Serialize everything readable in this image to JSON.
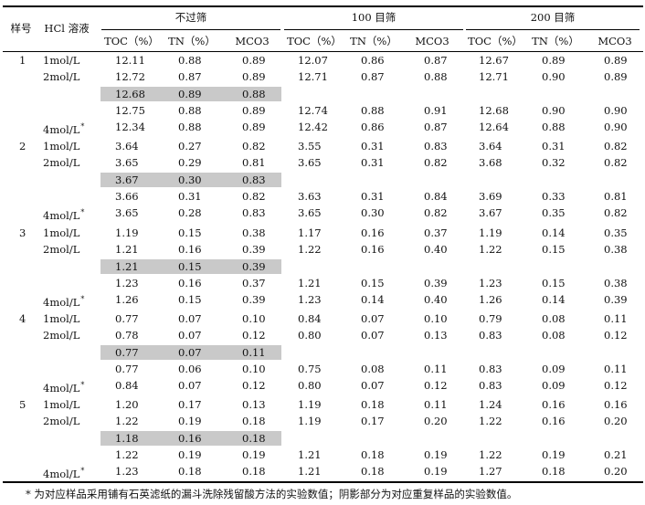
{
  "headers": {
    "sample": "样号",
    "hcl": "HCl 溶液",
    "groups": [
      "不过筛",
      "100 目筛",
      "200 目筛"
    ],
    "cols": [
      "TOC（%）",
      "TN（%）",
      "MCO3"
    ]
  },
  "samples": [
    {
      "id": "1",
      "rows": [
        {
          "label": "1mol/L",
          "star": false,
          "shaded": false,
          "vals": [
            [
              "12.11",
              "0.88",
              "0.89"
            ],
            [
              "12.07",
              "0.86",
              "0.87"
            ],
            [
              "12.67",
              "0.89",
              "0.89"
            ]
          ]
        },
        {
          "label": "2mol/L",
          "star": false,
          "shaded": false,
          "vals": [
            [
              "12.72",
              "0.87",
              "0.89"
            ],
            [
              "12.71",
              "0.87",
              "0.88"
            ],
            [
              "12.71",
              "0.90",
              "0.89"
            ]
          ]
        },
        {
          "label": "",
          "star": false,
          "shaded": true,
          "vals": [
            [
              "12.68",
              "0.89",
              "0.88"
            ],
            [
              "",
              "",
              ""
            ],
            [
              "",
              "",
              ""
            ]
          ]
        },
        {
          "label": "",
          "star": false,
          "shaded": false,
          "vals": [
            [
              "12.75",
              "0.88",
              "0.89"
            ],
            [
              "12.74",
              "0.88",
              "0.91"
            ],
            [
              "12.68",
              "0.90",
              "0.90"
            ]
          ]
        },
        {
          "label": "4mol/L",
          "star": true,
          "shaded": false,
          "vals": [
            [
              "12.34",
              "0.88",
              "0.89"
            ],
            [
              "12.42",
              "0.86",
              "0.87"
            ],
            [
              "12.64",
              "0.88",
              "0.90"
            ]
          ]
        }
      ]
    },
    {
      "id": "2",
      "rows": [
        {
          "label": "1mol/L",
          "star": false,
          "shaded": false,
          "vals": [
            [
              "3.64",
              "0.27",
              "0.82"
            ],
            [
              "3.55",
              "0.31",
              "0.83"
            ],
            [
              "3.64",
              "0.31",
              "0.82"
            ]
          ]
        },
        {
          "label": "2mol/L",
          "star": false,
          "shaded": false,
          "vals": [
            [
              "3.65",
              "0.29",
              "0.81"
            ],
            [
              "3.65",
              "0.31",
              "0.82"
            ],
            [
              "3.68",
              "0.32",
              "0.82"
            ]
          ]
        },
        {
          "label": "",
          "star": false,
          "shaded": true,
          "vals": [
            [
              "3.67",
              "0.30",
              "0.83"
            ],
            [
              "",
              "",
              ""
            ],
            [
              "",
              "",
              ""
            ]
          ]
        },
        {
          "label": "",
          "star": false,
          "shaded": false,
          "vals": [
            [
              "3.66",
              "0.31",
              "0.82"
            ],
            [
              "3.63",
              "0.31",
              "0.84"
            ],
            [
              "3.69",
              "0.33",
              "0.81"
            ]
          ]
        },
        {
          "label": "4mol/L",
          "star": true,
          "shaded": false,
          "vals": [
            [
              "3.65",
              "0.28",
              "0.83"
            ],
            [
              "3.65",
              "0.30",
              "0.82"
            ],
            [
              "3.67",
              "0.35",
              "0.82"
            ]
          ]
        }
      ]
    },
    {
      "id": "3",
      "rows": [
        {
          "label": "1mol/L",
          "star": false,
          "shaded": false,
          "vals": [
            [
              "1.19",
              "0.15",
              "0.38"
            ],
            [
              "1.17",
              "0.16",
              "0.37"
            ],
            [
              "1.19",
              "0.14",
              "0.35"
            ]
          ]
        },
        {
          "label": "2mol/L",
          "star": false,
          "shaded": false,
          "vals": [
            [
              "1.21",
              "0.16",
              "0.39"
            ],
            [
              "1.22",
              "0.16",
              "0.40"
            ],
            [
              "1.22",
              "0.15",
              "0.38"
            ]
          ]
        },
        {
          "label": "",
          "star": false,
          "shaded": true,
          "vals": [
            [
              "1.21",
              "0.15",
              "0.39"
            ],
            [
              "",
              "",
              ""
            ],
            [
              "",
              "",
              ""
            ]
          ]
        },
        {
          "label": "",
          "star": false,
          "shaded": false,
          "vals": [
            [
              "1.23",
              "0.16",
              "0.37"
            ],
            [
              "1.21",
              "0.15",
              "0.39"
            ],
            [
              "1.23",
              "0.15",
              "0.38"
            ]
          ]
        },
        {
          "label": "4mol/L",
          "star": true,
          "shaded": false,
          "vals": [
            [
              "1.26",
              "0.15",
              "0.39"
            ],
            [
              "1.23",
              "0.14",
              "0.40"
            ],
            [
              "1.26",
              "0.14",
              "0.39"
            ]
          ]
        }
      ]
    },
    {
      "id": "4",
      "rows": [
        {
          "label": "1mol/L",
          "star": false,
          "shaded": false,
          "vals": [
            [
              "0.77",
              "0.07",
              "0.10"
            ],
            [
              "0.84",
              "0.07",
              "0.10"
            ],
            [
              "0.79",
              "0.08",
              "0.11"
            ]
          ]
        },
        {
          "label": "2mol/L",
          "star": false,
          "shaded": false,
          "vals": [
            [
              "0.78",
              "0.07",
              "0.12"
            ],
            [
              "0.80",
              "0.07",
              "0.13"
            ],
            [
              "0.83",
              "0.08",
              "0.12"
            ]
          ]
        },
        {
          "label": "",
          "star": false,
          "shaded": true,
          "vals": [
            [
              "0.77",
              "0.07",
              "0.11"
            ],
            [
              "",
              "",
              ""
            ],
            [
              "",
              "",
              ""
            ]
          ]
        },
        {
          "label": "",
          "star": false,
          "shaded": false,
          "vals": [
            [
              "0.77",
              "0.06",
              "0.10"
            ],
            [
              "0.75",
              "0.08",
              "0.11"
            ],
            [
              "0.83",
              "0.09",
              "0.11"
            ]
          ]
        },
        {
          "label": "4mol/L",
          "star": true,
          "shaded": false,
          "vals": [
            [
              "0.84",
              "0.07",
              "0.12"
            ],
            [
              "0.80",
              "0.07",
              "0.12"
            ],
            [
              "0.83",
              "0.09",
              "0.12"
            ]
          ]
        }
      ]
    },
    {
      "id": "5",
      "rows": [
        {
          "label": "1mol/L",
          "star": false,
          "shaded": false,
          "vals": [
            [
              "1.20",
              "0.17",
              "0.13"
            ],
            [
              "1.19",
              "0.18",
              "0.11"
            ],
            [
              "1.24",
              "0.16",
              "0.16"
            ]
          ]
        },
        {
          "label": "2mol/L",
          "star": false,
          "shaded": false,
          "vals": [
            [
              "1.22",
              "0.19",
              "0.18"
            ],
            [
              "1.19",
              "0.17",
              "0.20"
            ],
            [
              "1.22",
              "0.16",
              "0.20"
            ]
          ]
        },
        {
          "label": "",
          "star": false,
          "shaded": true,
          "vals": [
            [
              "1.18",
              "0.16",
              "0.18"
            ],
            [
              "",
              "",
              ""
            ],
            [
              "",
              "",
              ""
            ]
          ]
        },
        {
          "label": "",
          "star": false,
          "shaded": false,
          "vals": [
            [
              "1.22",
              "0.19",
              "0.19"
            ],
            [
              "1.21",
              "0.18",
              "0.19"
            ],
            [
              "1.22",
              "0.19",
              "0.21"
            ]
          ]
        },
        {
          "label": "4mol/L",
          "star": true,
          "shaded": false,
          "vals": [
            [
              "1.23",
              "0.18",
              "0.18"
            ],
            [
              "1.21",
              "0.18",
              "0.19"
            ],
            [
              "1.27",
              "0.18",
              "0.20"
            ]
          ]
        }
      ]
    }
  ],
  "footnote": "* 为对应样品采用铺有石英滤纸的漏斗洗除残留酸方法的实验数值；阴影部分为对应重复样品的实验数值。",
  "colors": {
    "shade": "#c9c9c9",
    "rule": "#000000"
  }
}
